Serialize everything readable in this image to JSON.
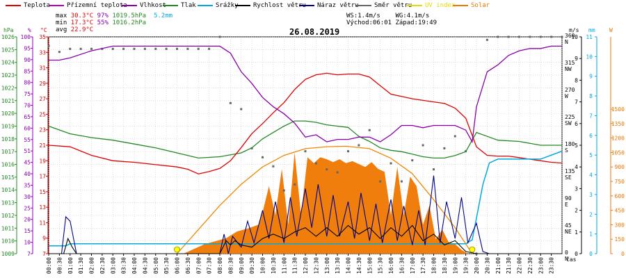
{
  "legend": [
    {
      "label": "Teplota",
      "color": "#dd0000"
    },
    {
      "label": "Přízemní teplota",
      "color": "#bb00bb"
    },
    {
      "label": "Vlhkost",
      "color": "#8800aa"
    },
    {
      "label": "Tlak",
      "color": "#228822"
    },
    {
      "label": "Srážky",
      "color": "#00aadd"
    },
    {
      "label": "Rychlost větru",
      "color": "#000000"
    },
    {
      "label": "Náraz větru",
      "color": "#000088"
    },
    {
      "label": "Směr větru",
      "color": "#666666"
    },
    {
      "label": "UV index",
      "color": "#dddd00"
    },
    {
      "label": "Solar",
      "color": "#ee7700"
    }
  ],
  "stats": {
    "max_label": "max",
    "max_temp": "30.3°C",
    "max_hum": "97%",
    "max_press": "1019.5hPa",
    "rain": "5.2mm",
    "min_label": "min",
    "min_temp": "17.3°C",
    "min_hum": "55%",
    "min_press": "1016.2hPa",
    "avg_label": "avg",
    "avg_temp": "22.9°C",
    "ws": "WS:1.4m/s",
    "wg": "WG:4.1m/s",
    "sunrise": "Východ:06:01",
    "sunset": "Západ:19:49"
  },
  "title": "26.08.2019",
  "axis_units": {
    "hpa": "hPa",
    "pct": "%",
    "degc": "°C",
    "mm": "mm",
    "w": "W",
    "ms": "m/s",
    "cas": "čas"
  },
  "chart_data": {
    "type": "line",
    "title": "26.08.2019",
    "xlabel": "čas",
    "x_ticks": [
      "00:00",
      "00:30",
      "01:00",
      "01:30",
      "02:00",
      "02:30",
      "03:00",
      "03:30",
      "04:00",
      "04:30",
      "05:00",
      "05:30",
      "06:00",
      "06:30",
      "07:00",
      "07:30",
      "08:00",
      "08:30",
      "09:00",
      "09:30",
      "10:00",
      "10:30",
      "11:00",
      "11:30",
      "12:00",
      "12:30",
      "13:00",
      "13:30",
      "14:00",
      "14:30",
      "15:00",
      "15:30",
      "16:00",
      "16:30",
      "17:00",
      "17:30",
      "18:00",
      "18:30",
      "19:00",
      "19:30",
      "20:00",
      "20:30",
      "21:00",
      "21:30",
      "22:00",
      "22:30",
      "23:00",
      "23:30"
    ],
    "axes": {
      "pressure_hpa": {
        "ticks": [
          1009,
          1010,
          1011,
          1012,
          1013,
          1014,
          1015,
          1016,
          1017,
          1018,
          1019,
          1020,
          1021,
          1022,
          1023,
          1024,
          1025,
          1026
        ],
        "color": "#228822",
        "ylim": [
          1009,
          1026
        ]
      },
      "humidity_pct": {
        "ticks": [
          7,
          10,
          15,
          20,
          25,
          30,
          35,
          40,
          45,
          51,
          55,
          60,
          65,
          70,
          75,
          80,
          85,
          90,
          95,
          100
        ],
        "color": "#8800aa"
      },
      "temperature_c": {
        "ticks": [
          7,
          9,
          11,
          13,
          15,
          17,
          19,
          21,
          23,
          25,
          27,
          29,
          31,
          33,
          35
        ],
        "color": "#dd0000",
        "ylim": [
          7,
          35
        ]
      },
      "wind_dir_deg": {
        "ticks": [
          0,
          45,
          90,
          135,
          180,
          225,
          270,
          315,
          360
        ],
        "labels": [
          "N",
          "NE",
          "E",
          "SE",
          "S",
          "SW",
          "W",
          "NW",
          "N"
        ],
        "color": "#000000"
      },
      "wind_ms": {
        "ticks": [
          0,
          1,
          2,
          3,
          4,
          5,
          6,
          7,
          8,
          9,
          10
        ],
        "color": "#000000",
        "ylim": [
          0,
          10
        ]
      },
      "rain_mm": {
        "ticks": [
          0,
          1,
          2,
          3,
          4,
          5,
          6,
          7,
          8,
          9,
          10,
          11
        ],
        "color": "#00aadd",
        "ylim": [
          0,
          11
        ]
      },
      "solar_w": {
        "ticks": [
          0,
          150,
          300,
          450,
          600,
          750,
          900,
          1050,
          1200,
          1350,
          1500
        ],
        "color": "#ee7700",
        "ylim": [
          0,
          2250
        ]
      }
    },
    "series": [
      {
        "name": "Teplota",
        "axis": "temperature_c",
        "color": "#dd0000",
        "x": [
          0,
          1,
          2,
          3,
          4,
          5,
          6,
          6.5,
          7,
          7.5,
          8,
          8.5,
          9,
          9.5,
          10,
          10.5,
          11,
          11.5,
          12,
          12.5,
          13,
          13.5,
          14,
          14.5,
          15,
          15.5,
          16,
          16.5,
          17,
          17.5,
          18,
          18.5,
          19,
          19.5,
          20,
          20.5,
          21,
          21.5,
          22,
          22.5,
          23,
          23.5,
          24
        ],
        "y": [
          21,
          20.8,
          19.7,
          19,
          18.8,
          18.5,
          18.2,
          17.9,
          17.3,
          17.6,
          18,
          19,
          20.7,
          22.5,
          23.8,
          25.2,
          26.5,
          28.2,
          29.5,
          30.1,
          30.3,
          30.1,
          30.2,
          30.2,
          29.8,
          28.7,
          27.6,
          27.3,
          27.0,
          26.8,
          26.6,
          26.4,
          25.8,
          24.5,
          20.8,
          19.7,
          19.6,
          19.6,
          19.4,
          19.2,
          19.0,
          18.8,
          18.7
        ]
      },
      {
        "name": "Vlhkost",
        "axis": "humidity_pct",
        "color": "#8800aa",
        "x": [
          0,
          0.5,
          1,
          2,
          3,
          4,
          5,
          6,
          7,
          7.5,
          8,
          8.5,
          9,
          9.5,
          10,
          10.5,
          11,
          11.5,
          12,
          12.5,
          13,
          13.5,
          14,
          14.5,
          15,
          15.5,
          16,
          16.5,
          17,
          17.5,
          18,
          18.5,
          19,
          19.5,
          19.8,
          20,
          20.5,
          21,
          21.5,
          22,
          22.5,
          23,
          23.5,
          24
        ],
        "y": [
          90,
          90,
          91,
          94,
          96,
          96,
          96,
          96,
          96,
          96,
          96,
          93,
          85,
          80,
          74,
          70,
          67,
          63,
          57,
          58,
          55,
          56,
          56,
          57,
          57,
          55,
          58,
          62,
          62,
          61,
          62,
          62,
          62,
          60,
          55,
          70,
          85,
          88,
          92,
          94,
          95,
          95,
          96,
          96
        ]
      },
      {
        "name": "Tlak",
        "axis": "pressure_hpa",
        "color": "#228822",
        "x": [
          0,
          0.5,
          1,
          2,
          3,
          4,
          5,
          6,
          7,
          8,
          9,
          9.5,
          10,
          10.5,
          11,
          11.5,
          12,
          12.5,
          13,
          13.5,
          14,
          14.5,
          15,
          15.5,
          16,
          16.5,
          17,
          17.5,
          18,
          18.5,
          19,
          19.5,
          20,
          20.5,
          21,
          22,
          23,
          24
        ],
        "y": [
          1019.0,
          1018.7,
          1018.4,
          1018.1,
          1017.9,
          1017.6,
          1017.3,
          1016.9,
          1016.5,
          1016.6,
          1016.9,
          1017.3,
          1018.0,
          1018.5,
          1019.0,
          1019.4,
          1019.4,
          1019.3,
          1019.1,
          1019.0,
          1018.9,
          1018.2,
          1017.8,
          1017.3,
          1017.1,
          1017.0,
          1016.8,
          1016.6,
          1016.5,
          1016.5,
          1016.7,
          1017.0,
          1018.5,
          1018.2,
          1017.9,
          1017.8,
          1017.5,
          1017.5
        ]
      },
      {
        "name": "Srážky",
        "axis": "rain_mm",
        "color": "#00aadd",
        "x": [
          0,
          0.5,
          0.8,
          1.0,
          1.5,
          2,
          6,
          10,
          14,
          18,
          19.5,
          19.8,
          20.0,
          20.3,
          20.6,
          21,
          22,
          23,
          24
        ],
        "y": [
          0.4,
          0.4,
          0.4,
          0.5,
          0.5,
          0.5,
          0.5,
          0.5,
          0.5,
          0.5,
          0.5,
          0.7,
          1.8,
          3.5,
          4.6,
          4.8,
          4.8,
          4.8,
          5.2
        ]
      },
      {
        "name": "Rychlost větru",
        "axis": "wind_ms",
        "color": "#000000",
        "x": [
          0,
          0.7,
          0.9,
          1.1,
          1.3,
          1.6,
          2,
          8,
          8.3,
          8.5,
          8.7,
          9.0,
          9.5,
          10,
          10.5,
          11,
          11.5,
          12,
          12.5,
          13,
          13.5,
          14,
          14.5,
          15,
          15.5,
          16,
          16.5,
          17,
          17.5,
          18,
          18.5,
          19,
          19.5,
          20,
          24
        ],
        "y": [
          0,
          0,
          0.7,
          0.3,
          0,
          0,
          0,
          0,
          0.6,
          0.4,
          0.6,
          0.4,
          0.3,
          0.7,
          0.9,
          0.7,
          1.0,
          1.2,
          0.8,
          1.2,
          0.8,
          1.3,
          0.9,
          1.2,
          0.7,
          1.2,
          0.8,
          1.3,
          0.6,
          0.9,
          0.4,
          0.6,
          0.1,
          0,
          0
        ]
      },
      {
        "name": "Náraz větru",
        "axis": "wind_ms",
        "color": "#000088",
        "x": [
          0,
          0.6,
          0.8,
          1.0,
          1.3,
          1.6,
          2,
          8,
          8.2,
          8.4,
          8.6,
          9,
          9.3,
          9.6,
          10,
          10.3,
          10.6,
          11,
          11.3,
          11.6,
          12,
          12.3,
          12.6,
          13,
          13.3,
          13.6,
          14,
          14.3,
          14.6,
          15,
          15.3,
          15.6,
          16,
          16.3,
          16.6,
          17,
          17.3,
          17.6,
          18,
          18.3,
          18.6,
          19,
          19.3,
          19.6,
          20,
          20.3,
          20.6,
          24
        ],
        "y": [
          0,
          0,
          1.7,
          1.5,
          0,
          0,
          0,
          0,
          0.9,
          0,
          0.8,
          0.3,
          1.5,
          0.5,
          2.0,
          0.7,
          2.4,
          0.5,
          2.6,
          0.8,
          3.0,
          1.2,
          3.2,
          0.8,
          2.7,
          0.8,
          2.4,
          0.7,
          2.8,
          0.6,
          2.3,
          0.5,
          2.5,
          0.6,
          2.2,
          0.4,
          2.0,
          0.4,
          3.6,
          0.5,
          2.4,
          0.7,
          2.6,
          0.5,
          1.4,
          0.1,
          0,
          0
        ]
      },
      {
        "name": "Solar",
        "axis": "solar_w",
        "color": "#ee7700",
        "fill": true,
        "x": [
          6.3,
          6.8,
          7.3,
          7.8,
          8.3,
          8.8,
          9.3,
          9.8,
          10.0,
          10.3,
          10.6,
          10.9,
          11.2,
          11.5,
          11.8,
          12.1,
          12.4,
          12.7,
          13.0,
          13.3,
          13.6,
          13.9,
          14.2,
          14.5,
          14.8,
          15.1,
          15.4,
          15.7,
          16.0,
          16.3,
          16.6,
          16.9,
          17.2,
          17.5,
          17.8,
          18.1,
          18.4,
          18.7,
          19.0,
          19.3,
          19.6
        ],
        "y": [
          0,
          50,
          100,
          130,
          160,
          230,
          260,
          300,
          430,
          700,
          400,
          880,
          300,
          1050,
          400,
          1000,
          940,
          1000,
          980,
          950,
          980,
          940,
          960,
          930,
          900,
          950,
          880,
          850,
          400,
          900,
          400,
          800,
          700,
          300,
          500,
          150,
          250,
          120,
          100,
          40,
          0
        ]
      },
      {
        "name": "Solar_max",
        "axis": "solar_w",
        "color": "#ee7700",
        "x": [
          6.0,
          7,
          8,
          9,
          10,
          11,
          12,
          13,
          13.9,
          15,
          16,
          17,
          18,
          19,
          19.8
        ],
        "y": [
          0,
          250,
          500,
          720,
          900,
          1020,
          1090,
          1110,
          1115,
          1090,
          990,
          830,
          560,
          270,
          0
        ]
      }
    ],
    "wind_direction_deg": {
      "x": [
        0,
        0.5,
        1,
        1.5,
        2,
        2.5,
        3,
        3.5,
        4,
        4.5,
        5,
        5.5,
        6,
        6.5,
        7,
        7.5,
        8,
        8.5,
        9,
        9.5,
        10,
        10.5,
        11,
        11.5,
        12,
        12.5,
        13,
        13.5,
        14,
        14.5,
        15,
        15.5,
        16,
        16.5,
        17,
        17.5,
        18,
        18.5,
        19,
        19.5,
        20,
        20.5,
        21,
        21.5,
        22,
        22.5,
        23,
        23.5,
        24
      ],
      "y": [
        345,
        335,
        340,
        340,
        340,
        340,
        340,
        340,
        340,
        340,
        340,
        340,
        340,
        340,
        340,
        340,
        360,
        250,
        240,
        175,
        160,
        145,
        105,
        115,
        170,
        150,
        140,
        135,
        170,
        180,
        205,
        120,
        150,
        120,
        155,
        180,
        140,
        175,
        195,
        170,
        0,
        355,
        360,
        360,
        360,
        360,
        360,
        360,
        360
      ]
    },
    "uv_markers": {
      "x": [
        6.0,
        19.8
      ],
      "y": [
        0,
        0
      ]
    }
  }
}
